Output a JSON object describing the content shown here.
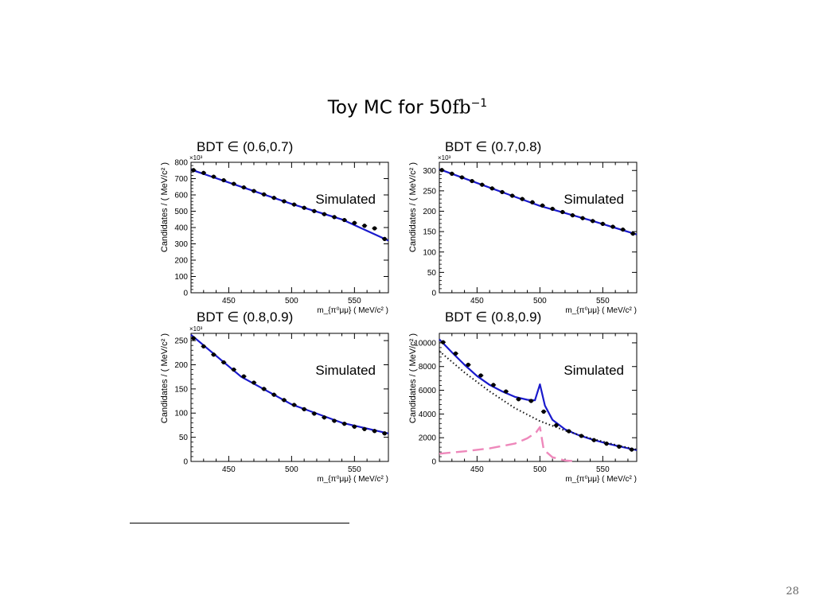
{
  "slide": {
    "title_text": "Toy MC for 50",
    "title_unit": "fb",
    "title_exp": "−1",
    "page_number": "28"
  },
  "chart_data": [
    {
      "type": "scatter",
      "panel_title": "BDT ∈ (0.6,0.7)",
      "annotation": "Simulated",
      "y_multiplier": "×10³",
      "xlabel": "m_{π⁰μμ} ( MeV/c² )",
      "ylabel": "Candidates / ( MeV/c² )",
      "xlim": [
        420,
        577
      ],
      "ylim": [
        0,
        800
      ],
      "xticks": [
        450,
        500,
        550
      ],
      "yticks": [
        0,
        100,
        200,
        300,
        400,
        500,
        600,
        700,
        800
      ],
      "x": [
        422,
        430,
        438,
        446,
        454,
        462,
        470,
        478,
        486,
        494,
        502,
        510,
        518,
        526,
        534,
        542,
        550,
        558,
        566,
        574
      ],
      "y": [
        752,
        735,
        712,
        690,
        668,
        646,
        624,
        603,
        582,
        561,
        541,
        521,
        501,
        482,
        464,
        446,
        428,
        411,
        395,
        330
      ],
      "series": [
        {
          "name": "data",
          "x": [
            422,
            430,
            438,
            446,
            454,
            462,
            470,
            478,
            486,
            494,
            502,
            510,
            518,
            526,
            534,
            542,
            550,
            558,
            566,
            574
          ],
          "values": [
            752,
            735,
            712,
            690,
            668,
            646,
            624,
            603,
            582,
            561,
            541,
            521,
            501,
            482,
            464,
            446,
            428,
            411,
            395,
            330
          ]
        },
        {
          "name": "fit",
          "x": [
            420,
            460,
            500,
            540,
            577
          ],
          "values": [
            755,
            650,
            545,
            450,
            320
          ]
        }
      ]
    },
    {
      "type": "scatter",
      "panel_title": "BDT ∈ (0.7,0.8)",
      "annotation": "Simulated",
      "y_multiplier": "×10³",
      "xlabel": "m_{π⁰μμ} ( MeV/c² )",
      "ylabel": "Candidates / ( MeV/c² )",
      "xlim": [
        420,
        577
      ],
      "ylim": [
        0,
        320
      ],
      "xticks": [
        450,
        500,
        550
      ],
      "yticks": [
        0,
        50,
        100,
        150,
        200,
        250,
        300
      ],
      "x": [
        422,
        430,
        438,
        446,
        454,
        462,
        470,
        478,
        486,
        494,
        502,
        510,
        518,
        526,
        534,
        542,
        550,
        558,
        566,
        574
      ],
      "y": [
        301,
        292,
        283,
        274,
        265,
        256,
        247,
        238,
        230,
        222,
        214,
        206,
        198,
        190,
        183,
        176,
        169,
        162,
        155,
        145
      ],
      "series": [
        {
          "name": "data",
          "x": [
            422,
            430,
            438,
            446,
            454,
            462,
            470,
            478,
            486,
            494,
            502,
            510,
            518,
            526,
            534,
            542,
            550,
            558,
            566,
            574
          ],
          "values": [
            301,
            292,
            283,
            274,
            265,
            256,
            247,
            238,
            230,
            222,
            214,
            206,
            198,
            190,
            183,
            176,
            169,
            162,
            155,
            145
          ]
        },
        {
          "name": "fit",
          "x": [
            420,
            460,
            500,
            540,
            577
          ],
          "values": [
            303,
            258,
            213,
            178,
            143
          ]
        }
      ]
    },
    {
      "type": "scatter",
      "panel_title": "BDT ∈ (0.8,0.9)",
      "annotation": "Simulated",
      "y_multiplier": "×10³",
      "xlabel": "m_{π⁰μμ} ( MeV/c² )",
      "ylabel": "Candidates / ( MeV/c² )",
      "xlim": [
        420,
        577
      ],
      "ylim": [
        0,
        265
      ],
      "xticks": [
        450,
        500,
        550
      ],
      "yticks": [
        0,
        50,
        100,
        150,
        200,
        250
      ],
      "x": [
        422,
        430,
        438,
        446,
        454,
        462,
        470,
        478,
        486,
        494,
        502,
        510,
        518,
        526,
        534,
        542,
        550,
        558,
        566,
        574
      ],
      "y": [
        255,
        238,
        221,
        205,
        190,
        176,
        163,
        150,
        138,
        127,
        117,
        108,
        99,
        91,
        84,
        78,
        72,
        67,
        63,
        58
      ],
      "series": [
        {
          "name": "data",
          "x": [
            422,
            430,
            438,
            446,
            454,
            462,
            470,
            478,
            486,
            494,
            502,
            510,
            518,
            526,
            534,
            542,
            550,
            558,
            566,
            574
          ],
          "values": [
            255,
            238,
            221,
            205,
            190,
            176,
            163,
            150,
            138,
            127,
            117,
            108,
            99,
            91,
            84,
            78,
            72,
            67,
            63,
            58
          ]
        },
        {
          "name": "fit",
          "x": [
            420,
            460,
            500,
            540,
            577
          ],
          "values": [
            262,
            175,
            118,
            80,
            58
          ]
        }
      ]
    },
    {
      "type": "scatter",
      "panel_title": "BDT ∈ (0.8,0.9)",
      "annotation": "Simulated",
      "y_multiplier": "",
      "xlabel": "m_{π⁰μμ} ( MeV/c² )",
      "ylabel": "Candidates / ( MeV/c² )",
      "xlim": [
        420,
        577
      ],
      "ylim": [
        0,
        10800
      ],
      "xticks": [
        450,
        500,
        550
      ],
      "yticks": [
        0,
        2000,
        4000,
        6000,
        8000,
        10000
      ],
      "x": [
        423,
        433,
        443,
        453,
        463,
        473,
        483,
        493,
        503,
        513,
        523,
        533,
        543,
        553,
        563,
        573
      ],
      "y": [
        10050,
        9100,
        8150,
        7250,
        6450,
        5900,
        5250,
        5100,
        4200,
        3050,
        2550,
        2150,
        1800,
        1500,
        1250,
        1000
      ],
      "series": [
        {
          "name": "data",
          "x": [
            423,
            433,
            443,
            453,
            463,
            473,
            483,
            493,
            503,
            513,
            523,
            533,
            543,
            553,
            563,
            573
          ],
          "values": [
            10050,
            9100,
            8150,
            7250,
            6450,
            5900,
            5250,
            5100,
            4200,
            3050,
            2550,
            2150,
            1800,
            1500,
            1250,
            1000
          ]
        },
        {
          "name": "total fit",
          "x": [
            420,
            430,
            440,
            450,
            460,
            470,
            480,
            490,
            496,
            500,
            504,
            510,
            520,
            530,
            540,
            550,
            560,
            577
          ],
          "values": [
            10300,
            9200,
            8150,
            7200,
            6450,
            5900,
            5450,
            5200,
            5150,
            6500,
            4700,
            3500,
            2700,
            2250,
            1900,
            1600,
            1350,
            950
          ]
        },
        {
          "name": "background",
          "x": [
            420,
            440,
            460,
            480,
            500,
            520,
            540,
            560,
            577
          ],
          "values": [
            9300,
            7500,
            5900,
            4500,
            3400,
            2600,
            1950,
            1400,
            1000
          ]
        },
        {
          "name": "signal",
          "x": [
            420,
            440,
            460,
            480,
            490,
            497,
            500,
            503,
            510,
            520,
            530
          ],
          "values": [
            650,
            850,
            1100,
            1500,
            1950,
            2450,
            2900,
            1000,
            350,
            80,
            0
          ]
        }
      ]
    }
  ]
}
